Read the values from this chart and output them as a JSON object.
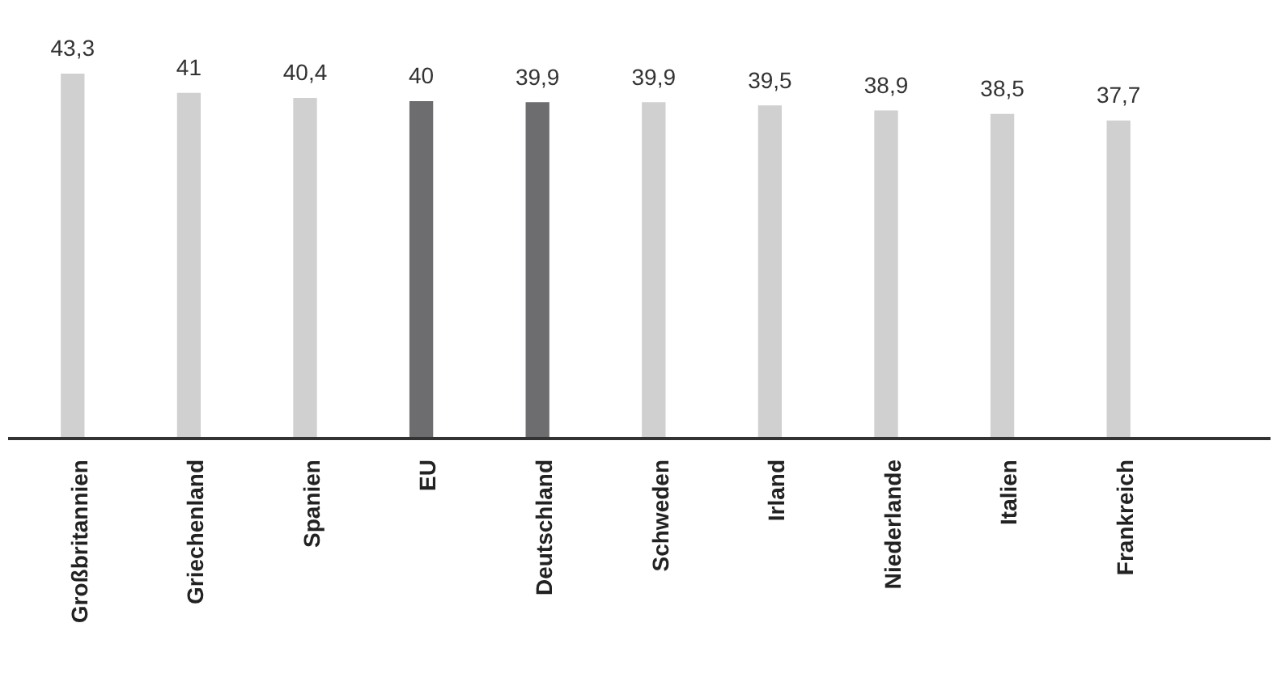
{
  "chart_data": {
    "type": "bar",
    "categories": [
      "Großbritannien",
      "Griechenland",
      "Spanien",
      "EU",
      "Deutschland",
      "Schweden",
      "Irland",
      "Niederlande",
      "Italien",
      "Frankreich"
    ],
    "values": [
      43.3,
      41,
      40.4,
      40,
      39.9,
      39.9,
      39.5,
      38.9,
      38.5,
      37.7
    ],
    "colors": [
      "#d0d0d0",
      "#d0d0d0",
      "#d0d0d0",
      "#6d6d70",
      "#6d6d70",
      "#d0d0d0",
      "#d0d0d0",
      "#d0d0d0",
      "#d0d0d0",
      "#d0d0d0"
    ],
    "value_labels": [
      "43,3",
      "41",
      "40,4",
      "40",
      "39,9",
      "39,9",
      "39,5",
      "38,9",
      "38,5",
      "37,7"
    ],
    "grid": false,
    "legend": false
  }
}
